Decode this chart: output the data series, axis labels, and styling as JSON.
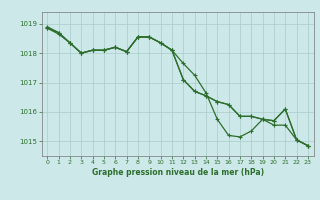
{
  "title": "Graphe pression niveau de la mer (hPa)",
  "bg_color": "#cce8e8",
  "grid_color": "#aacccc",
  "line_color": "#2d6e2d",
  "ylim": [
    1014.5,
    1019.4
  ],
  "yticks": [
    1015,
    1016,
    1017,
    1018,
    1019
  ],
  "xlim": [
    -0.5,
    23.5
  ],
  "xticks": [
    0,
    1,
    2,
    3,
    4,
    5,
    6,
    7,
    8,
    9,
    10,
    11,
    12,
    13,
    14,
    15,
    16,
    17,
    18,
    19,
    20,
    21,
    22,
    23
  ],
  "series1": [
    1018.85,
    1018.7,
    1018.35,
    1018.0,
    1018.1,
    1018.1,
    1018.2,
    1018.05,
    1018.55,
    1018.55,
    1018.35,
    1018.1,
    1017.1,
    1016.7,
    1016.55,
    1016.35,
    1016.25,
    1015.85,
    1015.85,
    1015.75,
    1015.7,
    1016.1,
    1015.05,
    1014.85
  ],
  "series2": [
    1018.85,
    1018.65,
    1018.35,
    1018.0,
    1018.1,
    1018.1,
    1018.2,
    1018.05,
    1018.55,
    1018.55,
    1018.35,
    1018.1,
    1017.65,
    1017.25,
    1016.65,
    1015.75,
    1015.2,
    1015.15,
    1015.35,
    1015.75,
    1015.55,
    1015.55,
    1015.05,
    1014.85
  ],
  "series3": [
    1018.9,
    1018.7,
    1018.35,
    1018.0,
    1018.1,
    1018.1,
    1018.2,
    1018.05,
    1018.55,
    1018.55,
    1018.35,
    1018.1,
    1017.1,
    1016.7,
    1016.55,
    1016.35,
    1016.25,
    1015.85,
    1015.85,
    1015.75,
    1015.7,
    1016.1,
    1015.05,
    1014.85
  ]
}
